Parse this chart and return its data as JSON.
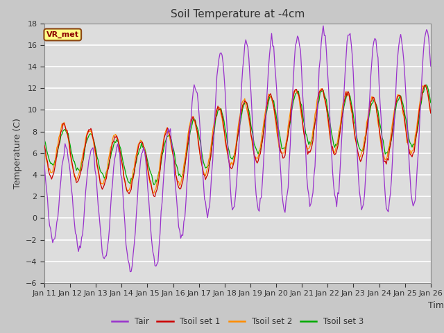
{
  "title": "Soil Temperature at -4cm",
  "xlabel": "Time",
  "ylabel": "Temperature (C)",
  "ylim": [
    -6,
    18
  ],
  "annotation": "VR_met",
  "bg_color": "#dddddd",
  "grid_color": "white",
  "line_colors": {
    "Tair": "#9932CC",
    "Tsoil1": "#CC0000",
    "Tsoil2": "#FF8C00",
    "Tsoil3": "#00AA00"
  },
  "legend_labels": [
    "Tair",
    "Tsoil set 1",
    "Tsoil set 2",
    "Tsoil set 3"
  ],
  "xtick_labels": [
    "Jan 11",
    "Jan 12",
    "Jan 13",
    "Jan 14",
    "Jan 15",
    "Jan 16",
    "Jan 17",
    "Jan 18",
    "Jan 19",
    "Jan 20",
    "Jan 21",
    "Jan 22",
    "Jan 23",
    "Jan 24",
    "Jan 25",
    "Jan 26"
  ],
  "ytick_values": [
    -6,
    -4,
    -2,
    0,
    2,
    4,
    6,
    8,
    10,
    12,
    14,
    16,
    18
  ],
  "n_points": 375
}
